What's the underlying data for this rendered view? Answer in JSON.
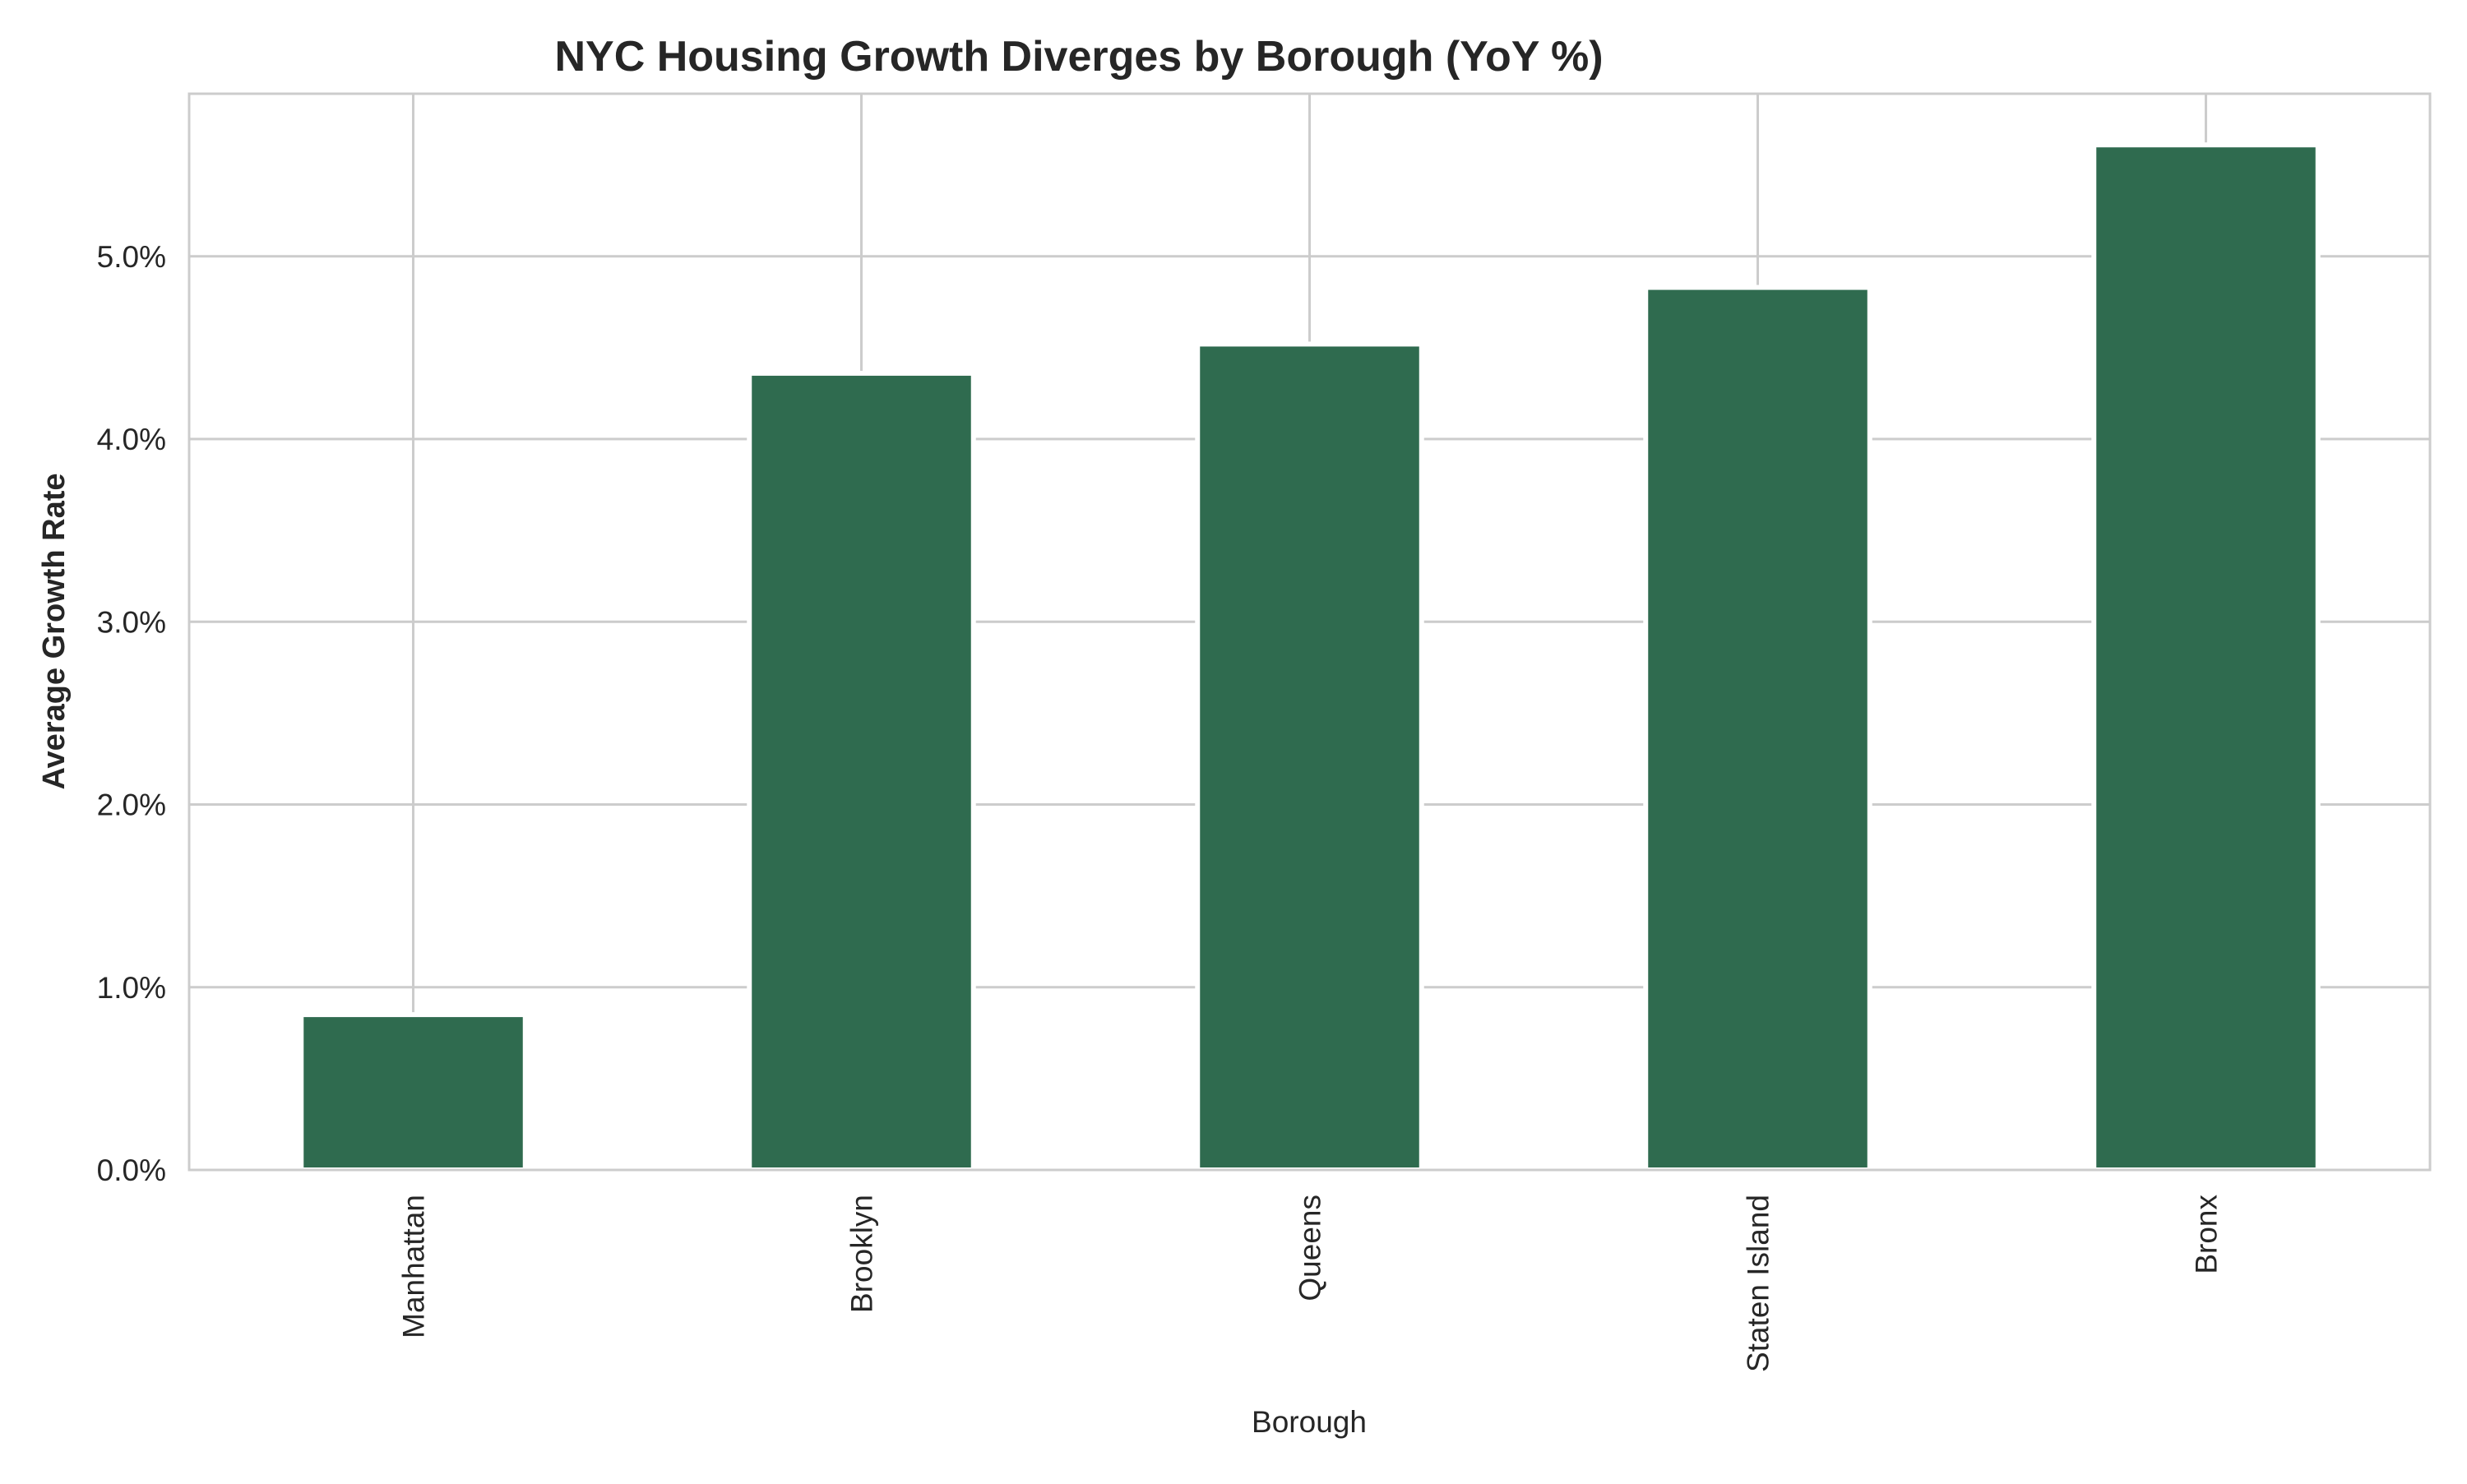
{
  "chart_data": {
    "type": "bar",
    "title": "NYC Housing Growth Diverges by Borough (YoY %)",
    "xlabel": "Borough",
    "ylabel": "Average Growth Rate",
    "categories": [
      "Manhattan",
      "Brooklyn",
      "Queens",
      "Staten Island",
      "Bronx"
    ],
    "values": [
      0.85,
      4.36,
      4.52,
      4.83,
      5.61
    ],
    "ylim": [
      0,
      5.89
    ],
    "yticks": [
      0,
      1,
      2,
      3,
      4,
      5
    ],
    "ytick_labels": [
      "0.0%",
      "1.0%",
      "2.0%",
      "3.0%",
      "4.0%",
      "5.0%"
    ],
    "grid": true,
    "bar_color": "#2f6b4f",
    "x_tick_rotation": 90
  }
}
